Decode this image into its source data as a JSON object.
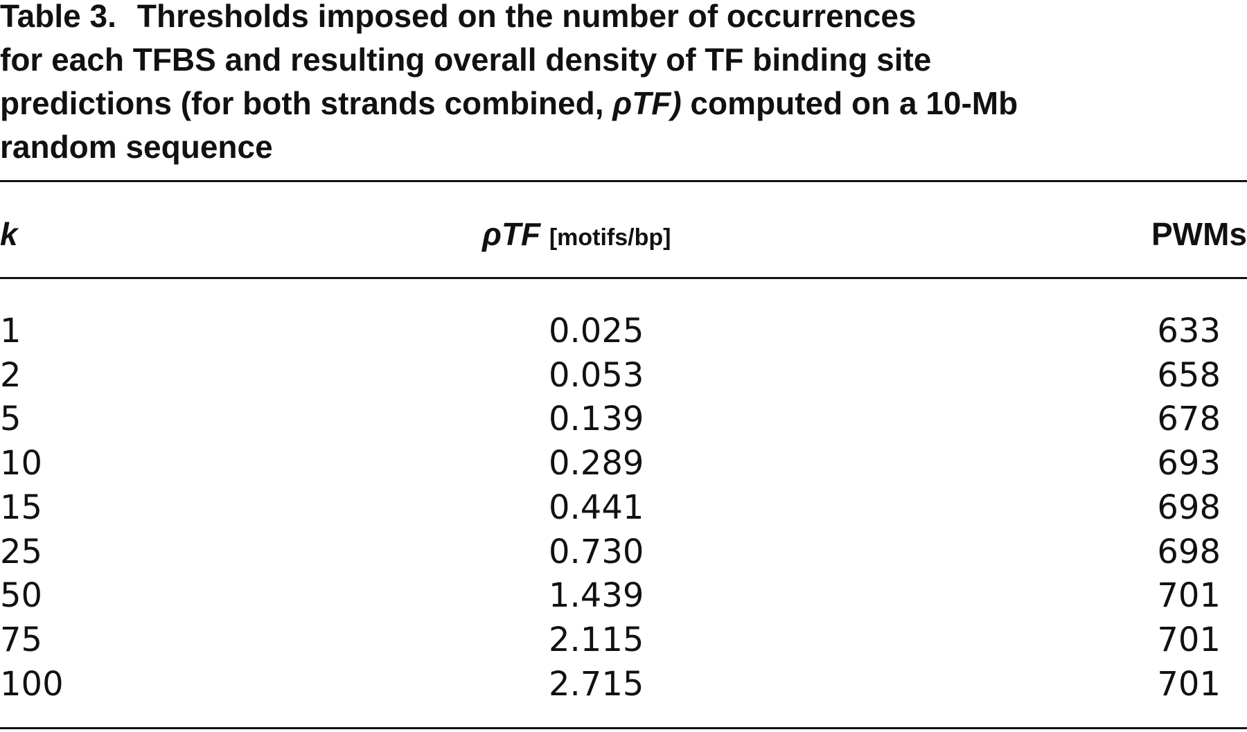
{
  "caption": {
    "label": "Table 3.",
    "lines": [
      [
        "Thresholds imposed on the number of occurrences"
      ],
      [
        "for each TFBS and resulting overall density of TF binding site"
      ],
      [
        "predictions (for both strands combined, ",
        "ρTF)",
        " computed on a 10-Mb"
      ],
      [
        "random sequence"
      ]
    ]
  },
  "table": {
    "header": {
      "k": "k",
      "density": "ρTF",
      "density_unit": "[motifs/bp]",
      "pwms": "PWMs"
    },
    "rows": [
      [
        "1",
        "0.025",
        "633"
      ],
      [
        "2",
        "0.053",
        "658"
      ],
      [
        "5",
        "0.139",
        "678"
      ],
      [
        "10",
        "0.289",
        "693"
      ],
      [
        "15",
        "0.441",
        "698"
      ],
      [
        "25",
        "0.730",
        "698"
      ],
      [
        "50",
        "1.439",
        "701"
      ],
      [
        "75",
        "2.115",
        "701"
      ],
      [
        "100",
        "2.715",
        "701"
      ]
    ]
  }
}
